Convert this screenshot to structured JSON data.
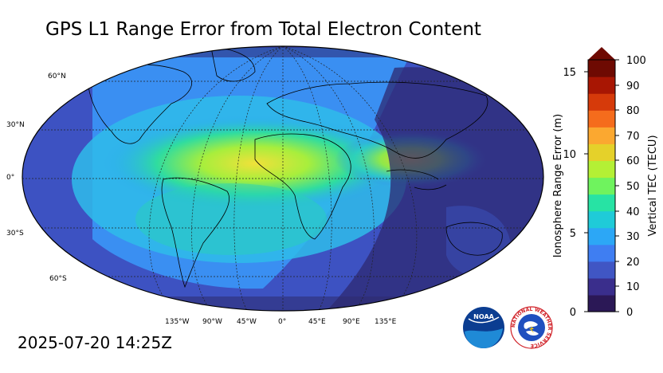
{
  "title": "GPS L1 Range Error from Total Electron Content",
  "timestamp": "2025-07-20 14:25Z",
  "map": {
    "lat_labels": [
      "60°N",
      "30°N",
      "0°",
      "30°S",
      "60°S"
    ],
    "lon_labels": [
      "135°W",
      "90°W",
      "45°W",
      "0°",
      "45°E",
      "90°E",
      "135°E"
    ]
  },
  "colorbar": {
    "left_label": "Ionosphere Range Error (m)",
    "right_label": "Vertical TEC (TECU)",
    "left_ticks": [
      "15",
      "10",
      "5",
      "0"
    ],
    "right_ticks": [
      "100",
      "90",
      "80",
      "70",
      "60",
      "50",
      "40",
      "30",
      "20",
      "10",
      "0"
    ],
    "colors": [
      "#2b1856",
      "#3a2e8c",
      "#4056c4",
      "#3f7ef2",
      "#2ca7f6",
      "#1fcbd8",
      "#27e3a4",
      "#6ff35e",
      "#b4f035",
      "#e5d12a",
      "#fba830",
      "#f56c1c",
      "#d63a0a",
      "#a81603",
      "#6e0a02"
    ]
  },
  "logos": {
    "noaa_text": "NOAA",
    "nws_ring_text": "NATIONAL WEATHER SERVICE"
  }
}
